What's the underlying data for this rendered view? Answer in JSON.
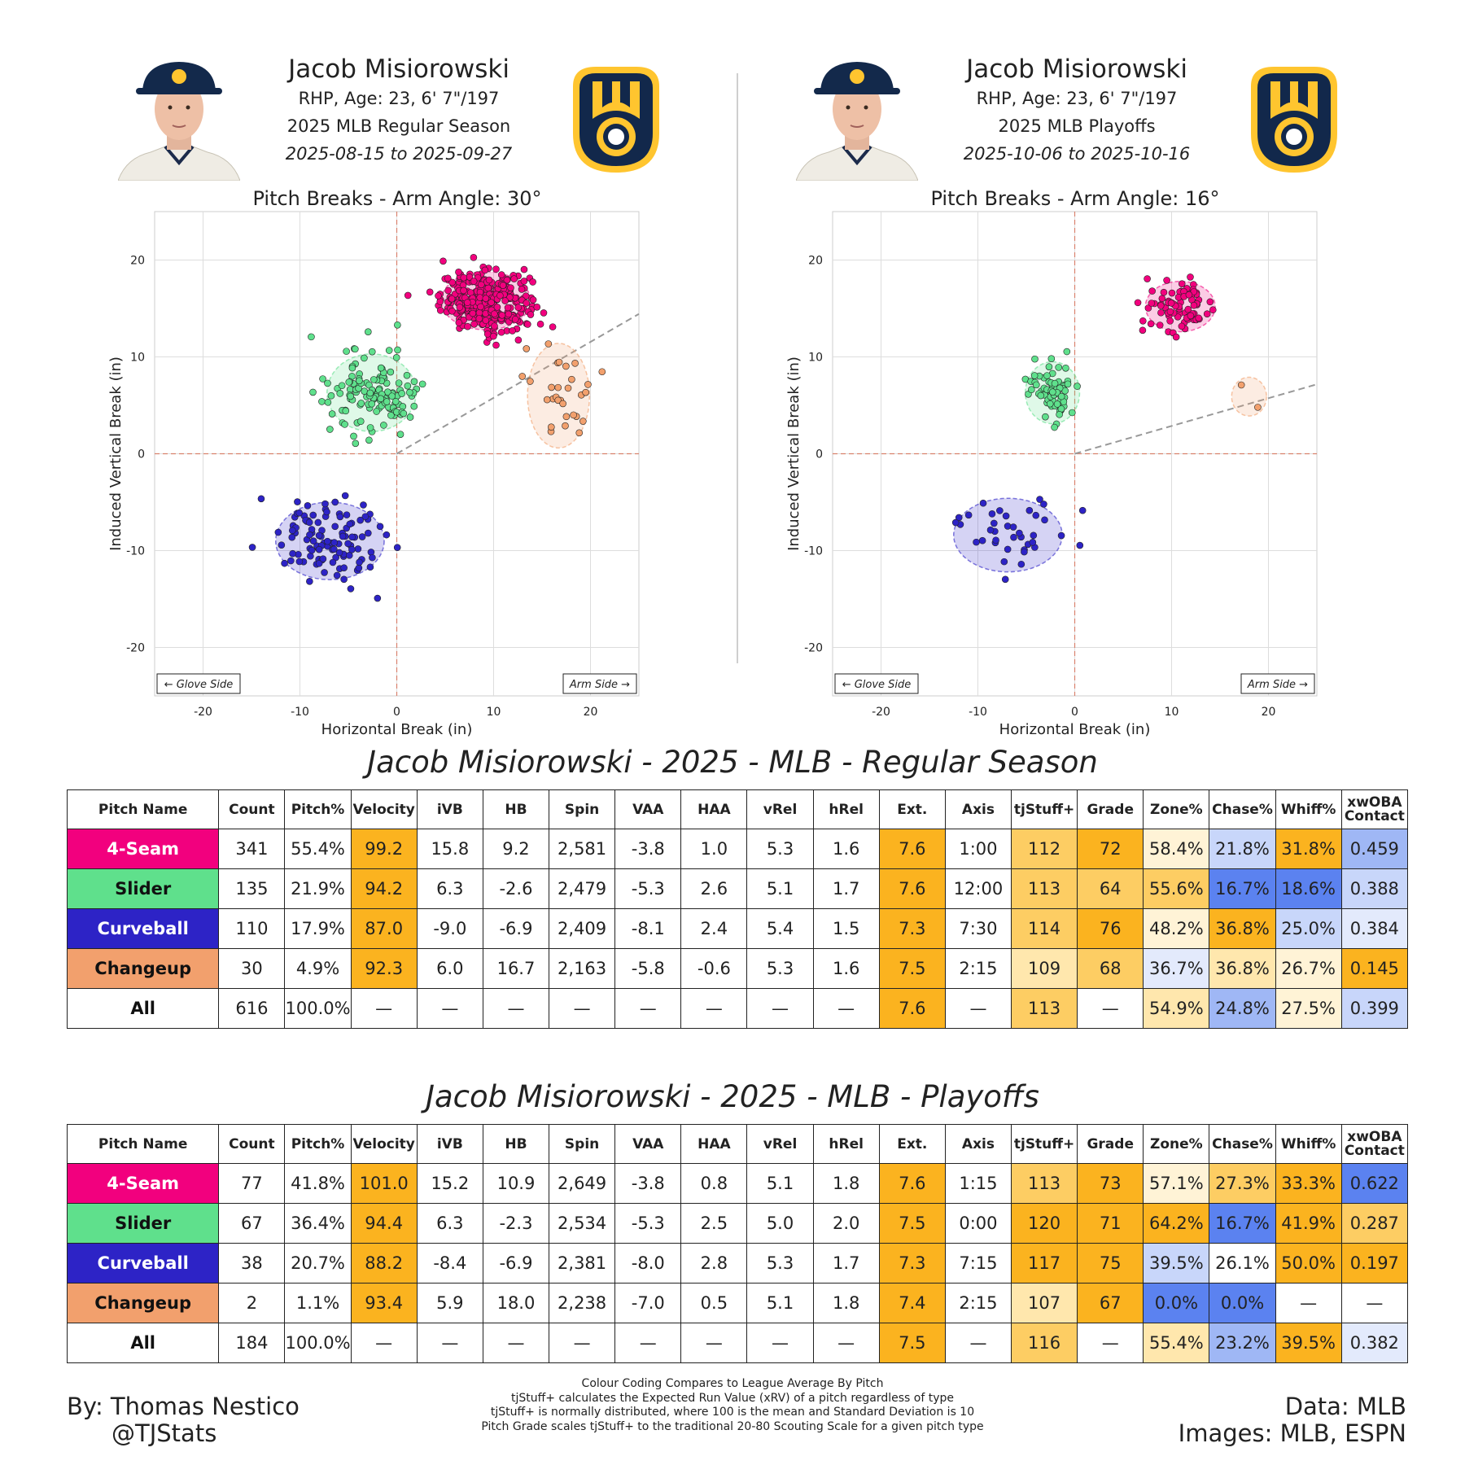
{
  "colors": {
    "four_seam": "#f2007e",
    "slider": "#5fe08c",
    "curveball": "#2d23c6",
    "changeup": "#f2a06d",
    "orange_hi": "#fbb31f",
    "orange_mid": "#fdcd63",
    "orange_lo": "#ffe7ad",
    "orange_pale": "#fff3d6",
    "blue_hi": "#5b82f0",
    "blue_mid": "#9fb7f5",
    "blue_lo": "#c8d6fa",
    "blue_pale": "#e3eafc"
  },
  "panels": [
    {
      "player_name": "Jacob Misiorowski",
      "bio": "RHP, Age: 23, 6' 7\"/197",
      "season": "2025 MLB Regular Season",
      "dates": "2025-08-15 to 2025-09-27",
      "plot_title": "Pitch Breaks - Arm Angle: 30°"
    },
    {
      "player_name": "Jacob Misiorowski",
      "bio": "RHP, Age: 23, 6' 7\"/197",
      "season": "2025 MLB Playoffs",
      "dates": "2025-10-06 to 2025-10-16",
      "plot_title": "Pitch Breaks - Arm Angle: 16°"
    }
  ],
  "chart_data": [
    {
      "type": "scatter",
      "title": "Pitch Breaks - Arm Angle: 30°",
      "xlabel": "Horizontal Break (in)",
      "ylabel": "Induced Vertical Break (in)",
      "xlim": [
        -25,
        25
      ],
      "ylim": [
        -25,
        25
      ],
      "xticks": [
        -20,
        -10,
        0,
        10,
        20
      ],
      "yticks": [
        -20,
        -10,
        0,
        10,
        20
      ],
      "grid": true,
      "arm_angle_deg": 30,
      "annotations": [
        "← Glove Side",
        "Arm Side →"
      ],
      "series": [
        {
          "name": "4-Seam",
          "color": "#f2007e",
          "count": 341,
          "mean_x": 9.2,
          "mean_y": 15.8,
          "sd_x": 2.3,
          "sd_y": 1.5
        },
        {
          "name": "Slider",
          "color": "#5fe08c",
          "count": 135,
          "mean_x": -2.6,
          "mean_y": 6.3,
          "sd_x": 2.3,
          "sd_y": 2.0
        },
        {
          "name": "Curveball",
          "color": "#2d23c6",
          "count": 110,
          "mean_x": -6.9,
          "mean_y": -9.0,
          "sd_x": 2.8,
          "sd_y": 2.0
        },
        {
          "name": "Changeup",
          "color": "#f2a06d",
          "count": 30,
          "mean_x": 16.7,
          "mean_y": 6.0,
          "sd_x": 1.6,
          "sd_y": 2.7
        }
      ]
    },
    {
      "type": "scatter",
      "title": "Pitch Breaks - Arm Angle: 16°",
      "xlabel": "Horizontal Break (in)",
      "ylabel": "Induced Vertical Break (in)",
      "xlim": [
        -25,
        25
      ],
      "ylim": [
        -25,
        25
      ],
      "xticks": [
        -20,
        -10,
        0,
        10,
        20
      ],
      "yticks": [
        -20,
        -10,
        0,
        10,
        20
      ],
      "grid": true,
      "arm_angle_deg": 16,
      "annotations": [
        "← Glove Side",
        "Arm Side →"
      ],
      "series": [
        {
          "name": "4-Seam",
          "color": "#f2007e",
          "count": 77,
          "mean_x": 10.9,
          "mean_y": 15.2,
          "sd_x": 1.8,
          "sd_y": 1.3
        },
        {
          "name": "Slider",
          "color": "#5fe08c",
          "count": 67,
          "mean_x": -2.3,
          "mean_y": 6.3,
          "sd_x": 1.4,
          "sd_y": 1.6
        },
        {
          "name": "Curveball",
          "color": "#2d23c6",
          "count": 38,
          "mean_x": -6.9,
          "mean_y": -8.4,
          "sd_x": 2.8,
          "sd_y": 1.9
        },
        {
          "name": "Changeup",
          "color": "#f2a06d",
          "count": 2,
          "mean_x": 18.0,
          "mean_y": 5.9,
          "sd_x": 0.9,
          "sd_y": 1.0
        }
      ]
    }
  ],
  "tables": [
    {
      "title": "Jacob Misiorowski - 2025 - MLB - Regular Season",
      "headers": [
        "Pitch Name",
        "Count",
        "Pitch%",
        "Velocity",
        "iVB",
        "HB",
        "Spin",
        "VAA",
        "HAA",
        "vRel",
        "hRel",
        "Ext.",
        "Axis",
        "tjStuff+",
        "Grade",
        "Zone%",
        "Chase%",
        "Whiff%",
        "xwOBA Contact"
      ],
      "rows": [
        {
          "pitch": "4-Seam",
          "pitch_color": "#f2007e",
          "pitch_text": "#ffffff",
          "cells": [
            "341",
            "55.4%",
            "99.2",
            "15.8",
            "9.2",
            "2,581",
            "-3.8",
            "1.0",
            "5.3",
            "1.6",
            "7.6",
            "1:00",
            "112",
            "72",
            "58.4%",
            "21.8%",
            "31.8%",
            "0.459"
          ],
          "shades": [
            "",
            "",
            "oh",
            "",
            "",
            "",
            "",
            "",
            "",
            "",
            "oh",
            "",
            "om",
            "oh",
            "op",
            "bl",
            "oh",
            "bm"
          ]
        },
        {
          "pitch": "Slider",
          "pitch_color": "#5fe08c",
          "pitch_text": "#111111",
          "cells": [
            "135",
            "21.9%",
            "94.2",
            "6.3",
            "-2.6",
            "2,479",
            "-5.3",
            "2.6",
            "5.1",
            "1.7",
            "7.6",
            "12:00",
            "113",
            "64",
            "55.6%",
            "16.7%",
            "18.6%",
            "0.388"
          ],
          "shades": [
            "",
            "",
            "oh",
            "",
            "",
            "",
            "",
            "",
            "",
            "",
            "oh",
            "",
            "om",
            "om",
            "om",
            "bh",
            "bh",
            "bl"
          ]
        },
        {
          "pitch": "Curveball",
          "pitch_color": "#2d23c6",
          "pitch_text": "#ffffff",
          "cells": [
            "110",
            "17.9%",
            "87.0",
            "-9.0",
            "-6.9",
            "2,409",
            "-8.1",
            "2.4",
            "5.4",
            "1.5",
            "7.3",
            "7:30",
            "114",
            "76",
            "48.2%",
            "36.8%",
            "25.0%",
            "0.384"
          ],
          "shades": [
            "",
            "",
            "oh",
            "",
            "",
            "",
            "",
            "",
            "",
            "",
            "oh",
            "",
            "om",
            "oh",
            "op",
            "oh",
            "bl",
            "bp"
          ]
        },
        {
          "pitch": "Changeup",
          "pitch_color": "#f2a06d",
          "pitch_text": "#111111",
          "cells": [
            "30",
            "4.9%",
            "92.3",
            "6.0",
            "16.7",
            "2,163",
            "-5.8",
            "-0.6",
            "5.3",
            "1.6",
            "7.5",
            "2:15",
            "109",
            "68",
            "36.7%",
            "36.8%",
            "26.7%",
            "0.145"
          ],
          "shades": [
            "",
            "",
            "oh",
            "",
            "",
            "",
            "",
            "",
            "",
            "",
            "oh",
            "",
            "ol",
            "om",
            "bp",
            "ol",
            "op",
            "oh"
          ]
        },
        {
          "pitch": "All",
          "pitch_color": "#ffffff",
          "pitch_text": "#111111",
          "cells": [
            "616",
            "100.0%",
            "—",
            "—",
            "—",
            "—",
            "—",
            "—",
            "—",
            "—",
            "7.6",
            "—",
            "113",
            "—",
            "54.9%",
            "24.8%",
            "27.5%",
            "0.399"
          ],
          "shades": [
            "",
            "",
            "",
            "",
            "",
            "",
            "",
            "",
            "",
            "",
            "oh",
            "",
            "om",
            "",
            "ol",
            "bm",
            "op",
            "bl"
          ]
        }
      ]
    },
    {
      "title": "Jacob Misiorowski - 2025 - MLB - Playoffs",
      "headers": [
        "Pitch Name",
        "Count",
        "Pitch%",
        "Velocity",
        "iVB",
        "HB",
        "Spin",
        "VAA",
        "HAA",
        "vRel",
        "hRel",
        "Ext.",
        "Axis",
        "tjStuff+",
        "Grade",
        "Zone%",
        "Chase%",
        "Whiff%",
        "xwOBA Contact"
      ],
      "rows": [
        {
          "pitch": "4-Seam",
          "pitch_color": "#f2007e",
          "pitch_text": "#ffffff",
          "cells": [
            "77",
            "41.8%",
            "101.0",
            "15.2",
            "10.9",
            "2,649",
            "-3.8",
            "0.8",
            "5.1",
            "1.8",
            "7.6",
            "1:15",
            "113",
            "73",
            "57.1%",
            "27.3%",
            "33.3%",
            "0.622"
          ],
          "shades": [
            "",
            "",
            "oh",
            "",
            "",
            "",
            "",
            "",
            "",
            "",
            "oh",
            "",
            "om",
            "oh",
            "op",
            "om",
            "oh",
            "bh"
          ]
        },
        {
          "pitch": "Slider",
          "pitch_color": "#5fe08c",
          "pitch_text": "#111111",
          "cells": [
            "67",
            "36.4%",
            "94.4",
            "6.3",
            "-2.3",
            "2,534",
            "-5.3",
            "2.5",
            "5.0",
            "2.0",
            "7.5",
            "0:00",
            "120",
            "71",
            "64.2%",
            "16.7%",
            "41.9%",
            "0.287"
          ],
          "shades": [
            "",
            "",
            "oh",
            "",
            "",
            "",
            "",
            "",
            "",
            "",
            "oh",
            "",
            "oh",
            "oh",
            "oh",
            "bh",
            "oh",
            "om"
          ]
        },
        {
          "pitch": "Curveball",
          "pitch_color": "#2d23c6",
          "pitch_text": "#ffffff",
          "cells": [
            "38",
            "20.7%",
            "88.2",
            "-8.4",
            "-6.9",
            "2,381",
            "-8.0",
            "2.8",
            "5.3",
            "1.7",
            "7.3",
            "7:15",
            "117",
            "75",
            "39.5%",
            "26.1%",
            "50.0%",
            "0.197"
          ],
          "shades": [
            "",
            "",
            "oh",
            "",
            "",
            "",
            "",
            "",
            "",
            "",
            "oh",
            "",
            "oh",
            "oh",
            "bl",
            "",
            "oh",
            "oh"
          ]
        },
        {
          "pitch": "Changeup",
          "pitch_color": "#f2a06d",
          "pitch_text": "#111111",
          "cells": [
            "2",
            "1.1%",
            "93.4",
            "5.9",
            "18.0",
            "2,238",
            "-7.0",
            "0.5",
            "5.1",
            "1.8",
            "7.4",
            "2:15",
            "107",
            "67",
            "0.0%",
            "0.0%",
            "—",
            "—"
          ],
          "shades": [
            "",
            "",
            "oh",
            "",
            "",
            "",
            "",
            "",
            "",
            "",
            "oh",
            "",
            "ol",
            "oh",
            "bh",
            "bh",
            "",
            ""
          ]
        },
        {
          "pitch": "All",
          "pitch_color": "#ffffff",
          "pitch_text": "#111111",
          "cells": [
            "184",
            "100.0%",
            "—",
            "—",
            "—",
            "—",
            "—",
            "—",
            "—",
            "—",
            "7.5",
            "—",
            "116",
            "—",
            "55.4%",
            "23.2%",
            "39.5%",
            "0.382"
          ],
          "shades": [
            "",
            "",
            "",
            "",
            "",
            "",
            "",
            "",
            "",
            "",
            "oh",
            "",
            "om",
            "",
            "ol",
            "bm",
            "oh",
            "bp"
          ]
        }
      ]
    }
  ],
  "footer": {
    "author": "By: Thomas Nestico",
    "handle": "@TJStats",
    "notes": [
      "Colour Coding Compares to League Average By Pitch",
      "tjStuff+ calculates the Expected Run Value (xRV) of a pitch regardless of type",
      "tjStuff+ is normally distributed, where 100 is the mean and Standard Deviation is 10",
      "Pitch Grade scales tjStuff+ to the traditional 20-80 Scouting Scale for a given pitch type"
    ],
    "data_source": "Data: MLB",
    "images_source": "Images: MLB, ESPN"
  }
}
